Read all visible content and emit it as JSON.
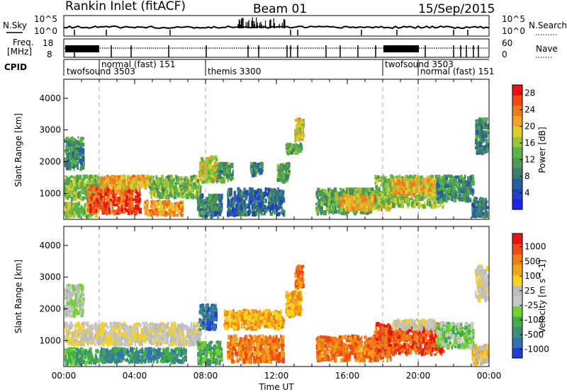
{
  "header": {
    "station": "Rankin Inlet (fitACF)",
    "beam": "Beam 01",
    "date": "15/Sep/2015"
  },
  "top_panels": {
    "nsky_label": "N.Sky",
    "nsearch_label": "N.Search",
    "log_ticks": [
      "10^5",
      "10^0"
    ],
    "freq_label_line1": "Freq.",
    "freq_label_line2": "[MHz]",
    "freq_ticks": [
      "18",
      "8"
    ],
    "nave_label": "Nave",
    "nave_ticks": [
      "60",
      "0"
    ],
    "cpid_label": "CPID"
  },
  "cpid_segments": [
    {
      "label": "twofsound 3503",
      "start_hour": 0.0,
      "end_hour": 2.0
    },
    {
      "label": "normal (fast) 151",
      "start_hour": 2.0,
      "end_hour": 8.0
    },
    {
      "label": "themis 3300",
      "start_hour": 8.0,
      "end_hour": 18.0
    },
    {
      "label": "twofsound 3503",
      "start_hour": 18.0,
      "end_hour": 20.0
    },
    {
      "label": "normal (fast) 151",
      "start_hour": 20.0,
      "end_hour": 24.0
    }
  ],
  "chart_data": [
    {
      "type": "heatmap",
      "quantity": "power",
      "xlabel": "Time UT",
      "ylabel": "Slant Range [km]",
      "xlim": [
        0,
        24
      ],
      "ylim": [
        180,
        4600
      ],
      "x_tick_labels": [
        "00:00",
        "04:00",
        "08:00",
        "12:00",
        "16:00",
        "20:00",
        "00:00"
      ],
      "y_ticks": [
        1000,
        2000,
        3000,
        4000
      ],
      "colorbar": {
        "label": "Power [dB]",
        "tick_values": [
          4,
          8,
          12,
          16,
          20,
          24,
          28
        ],
        "range": [
          0,
          30
        ],
        "colors": [
          "#1e22f0",
          "#2140c6",
          "#285fa2",
          "#3b7e6c",
          "#4e9a52",
          "#58b447",
          "#9cc43a",
          "#e0cd2a",
          "#f0a326",
          "#f07b1e",
          "#ee4a19",
          "#e8150f"
        ]
      },
      "regions": [
        {
          "t0": 0.0,
          "t1": 1.2,
          "r0": 1700,
          "r1": 2800,
          "level": 10
        },
        {
          "t0": 0.0,
          "t1": 2.2,
          "r0": 750,
          "r1": 1600,
          "level": 15
        },
        {
          "t0": 0.0,
          "t1": 2.0,
          "r0": 200,
          "r1": 750,
          "level": 16
        },
        {
          "t0": 1.3,
          "t1": 4.4,
          "r0": 300,
          "r1": 1300,
          "level": 26
        },
        {
          "t0": 2.0,
          "t1": 5.0,
          "r0": 1100,
          "r1": 1600,
          "level": 21
        },
        {
          "t0": 4.5,
          "t1": 6.8,
          "r0": 250,
          "r1": 800,
          "level": 22
        },
        {
          "t0": 4.8,
          "t1": 7.8,
          "r0": 800,
          "r1": 1600,
          "level": 14
        },
        {
          "t0": 7.6,
          "t1": 8.7,
          "r0": 1300,
          "r1": 2200,
          "level": 17
        },
        {
          "t0": 8.6,
          "t1": 9.6,
          "r0": 1300,
          "r1": 2000,
          "level": 11
        },
        {
          "t0": 7.5,
          "t1": 9.0,
          "r0": 200,
          "r1": 1000,
          "level": 9
        },
        {
          "t0": 9.2,
          "t1": 12.5,
          "r0": 250,
          "r1": 1200,
          "level": 7
        },
        {
          "t0": 10.5,
          "t1": 11.3,
          "r0": 1500,
          "r1": 2000,
          "level": 10
        },
        {
          "t0": 12.0,
          "t1": 12.8,
          "r0": 1300,
          "r1": 2000,
          "level": 12
        },
        {
          "t0": 13.0,
          "t1": 13.6,
          "r0": 2600,
          "r1": 3400,
          "level": 19
        },
        {
          "t0": 12.5,
          "t1": 13.5,
          "r0": 2200,
          "r1": 2600,
          "level": 12
        },
        {
          "t0": 14.2,
          "t1": 17.5,
          "r0": 300,
          "r1": 1200,
          "level": 13
        },
        {
          "t0": 15.5,
          "t1": 18.5,
          "r0": 400,
          "r1": 1000,
          "level": 21
        },
        {
          "t0": 17.5,
          "t1": 21.5,
          "r0": 500,
          "r1": 1600,
          "level": 15
        },
        {
          "t0": 18.5,
          "t1": 21.0,
          "r0": 900,
          "r1": 1500,
          "level": 20
        },
        {
          "t0": 21.0,
          "t1": 23.2,
          "r0": 700,
          "r1": 1600,
          "level": 10
        },
        {
          "t0": 23.2,
          "t1": 24.0,
          "r0": 2200,
          "r1": 3400,
          "level": 9
        },
        {
          "t0": 23.0,
          "t1": 24.0,
          "r0": 200,
          "r1": 900,
          "level": 8
        }
      ]
    },
    {
      "type": "heatmap",
      "quantity": "velocity",
      "xlabel": "Time UT",
      "ylabel": "Slant Range [km]",
      "xlim": [
        0,
        24
      ],
      "ylim": [
        180,
        4600
      ],
      "x_tick_labels": [
        "00:00",
        "04:00",
        "08:00",
        "12:00",
        "16:00",
        "20:00",
        "00:00"
      ],
      "y_ticks": [
        1000,
        2000,
        3000,
        4000
      ],
      "colorbar": {
        "label": "Velocity [m s^-1]",
        "tick_labels": [
          "1000",
          "500",
          "100",
          "25",
          "-25",
          "-100",
          "-500",
          "-1000"
        ],
        "colors": [
          "#1f3fd6",
          "#2f73b2",
          "#3c8f74",
          "#3fae45",
          "#74cf36",
          "#c8c8c8",
          "#bcbcbc",
          "#f4d21e",
          "#f2a417",
          "#f07e14",
          "#ee4a13",
          "#e8130f"
        ]
      },
      "regions": [
        {
          "t0": 0.0,
          "t1": 1.2,
          "r0": 1700,
          "r1": 2800,
          "band": 5
        },
        {
          "t0": 0.0,
          "t1": 7.8,
          "r0": 800,
          "r1": 1600,
          "band": 6
        },
        {
          "t0": 0.0,
          "t1": 2.0,
          "r0": 200,
          "r1": 800,
          "band": 3
        },
        {
          "t0": 2.0,
          "t1": 7.0,
          "r0": 250,
          "r1": 800,
          "band": 2
        },
        {
          "t0": 7.6,
          "t1": 8.7,
          "r0": 1300,
          "r1": 2200,
          "band": 1
        },
        {
          "t0": 7.5,
          "t1": 9.0,
          "r0": 200,
          "r1": 1000,
          "band": 3
        },
        {
          "t0": 9.0,
          "t1": 12.5,
          "r0": 1300,
          "r1": 2000,
          "band": 8
        },
        {
          "t0": 9.2,
          "t1": 12.5,
          "r0": 250,
          "r1": 1200,
          "band": 9
        },
        {
          "t0": 13.0,
          "t1": 13.6,
          "r0": 2600,
          "r1": 3400,
          "band": 9
        },
        {
          "t0": 12.5,
          "t1": 13.5,
          "r0": 1700,
          "r1": 2600,
          "band": 8
        },
        {
          "t0": 14.2,
          "t1": 18.5,
          "r0": 300,
          "r1": 1200,
          "band": 9
        },
        {
          "t0": 17.5,
          "t1": 21.5,
          "r0": 500,
          "r1": 1600,
          "band": 10
        },
        {
          "t0": 18.5,
          "t1": 21.0,
          "r0": 1300,
          "r1": 1700,
          "band": 6
        },
        {
          "t0": 21.0,
          "t1": 23.2,
          "r0": 700,
          "r1": 1600,
          "band": 4
        },
        {
          "t0": 23.2,
          "t1": 24.0,
          "r0": 2200,
          "r1": 3400,
          "band": 6
        },
        {
          "t0": 23.0,
          "t1": 24.0,
          "r0": 200,
          "r1": 900,
          "band": 7
        }
      ]
    }
  ]
}
